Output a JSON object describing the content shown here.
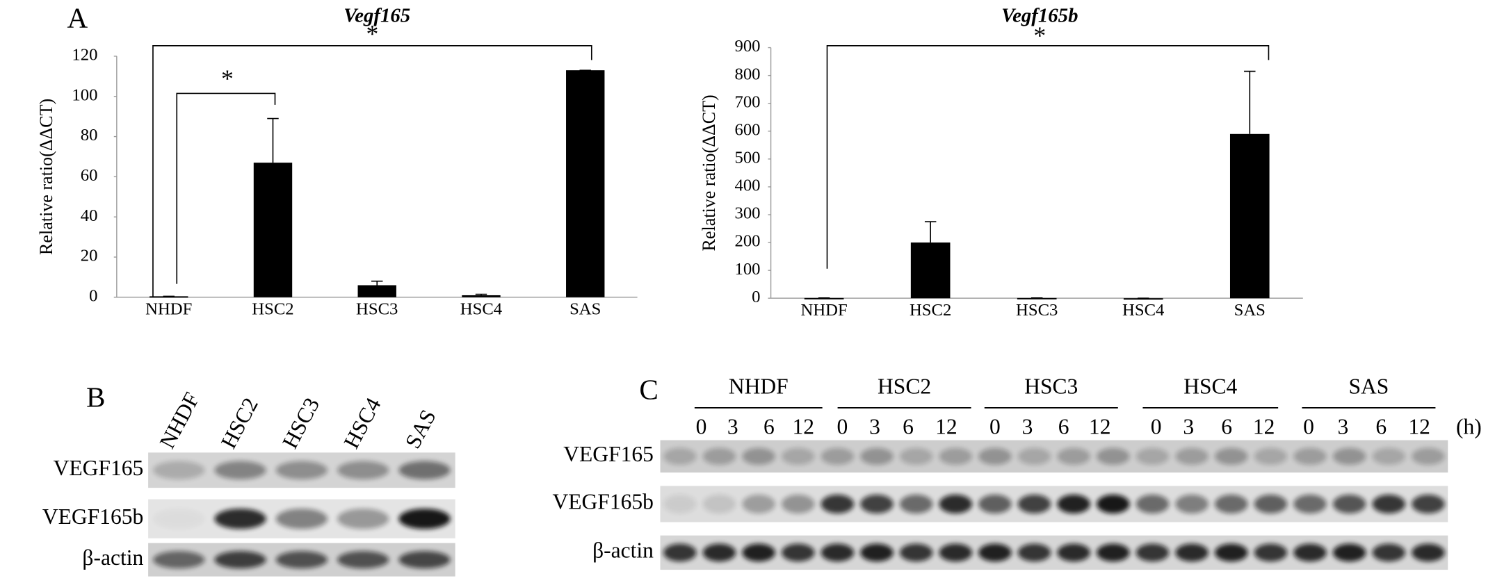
{
  "chart_data": [
    {
      "type": "bar",
      "panel_label": "A",
      "title": "Vegf165",
      "y_label": "Relative ratio(ΔΔCT)",
      "categories": [
        "NHDF",
        "HSC2",
        "HSC3",
        "HSC4",
        "SAS"
      ],
      "values": [
        0.5,
        67,
        6,
        1,
        113
      ],
      "errors": [
        0,
        22,
        2,
        0.5,
        0
      ],
      "color": "#000000",
      "ylim": [
        0,
        120
      ],
      "yticks": [
        0,
        20,
        40,
        60,
        80,
        100,
        120
      ],
      "annotations": [
        "*",
        "*"
      ]
    },
    {
      "type": "bar",
      "title": "Vegf165b",
      "y_label": "Relative ratio(ΔΔCT)",
      "categories": [
        "NHDF",
        "HSC2",
        "HSC3",
        "HSC4",
        "SAS"
      ],
      "values": [
        1,
        200,
        1,
        0,
        590
      ],
      "errors": [
        0,
        75,
        0,
        0,
        225
      ],
      "color": "#000000",
      "ylim": [
        0,
        900
      ],
      "yticks": [
        0,
        100,
        200,
        300,
        400,
        500,
        600,
        700,
        800,
        900
      ],
      "annotations": [
        "*"
      ]
    }
  ],
  "blot_b": {
    "panel_label": "B",
    "lanes": [
      "NHDF",
      "HSC2",
      "HSC3",
      "HSC4",
      "SAS"
    ],
    "rows": [
      "VEGF165",
      "VEGF165b",
      "β-actin"
    ]
  },
  "blot_c": {
    "panel_label": "C",
    "groups": [
      {
        "name": "NHDF",
        "times": [
          0,
          3,
          6,
          12
        ]
      },
      {
        "name": "HSC2",
        "times": [
          0,
          3,
          6,
          12
        ]
      },
      {
        "name": "HSC3",
        "times": [
          0,
          3,
          6,
          12
        ]
      },
      {
        "name": "HSC4",
        "times": [
          0,
          3,
          6,
          12
        ]
      },
      {
        "name": "SAS",
        "times": [
          0,
          3,
          6,
          12
        ]
      }
    ],
    "time_unit": "(h)",
    "rows": [
      "VEGF165",
      "VEGF165b",
      "β-actin"
    ]
  }
}
